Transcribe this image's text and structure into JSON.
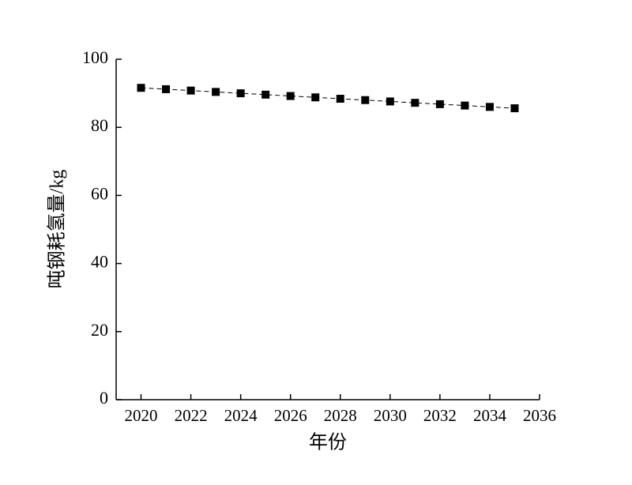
{
  "chart_data": {
    "type": "line",
    "x_label": "年份",
    "y_label": "吨钢耗氢量/kg",
    "x": [
      2020,
      2021,
      2022,
      2023,
      2024,
      2025,
      2026,
      2027,
      2028,
      2029,
      2030,
      2031,
      2032,
      2033,
      2034,
      2035
    ],
    "series": [
      {
        "color": "#000000",
        "values": [
          91.6,
          91.2,
          90.8,
          90.4,
          90.0,
          89.6,
          89.2,
          88.8,
          88.4,
          88.0,
          87.6,
          87.2,
          86.8,
          86.4,
          86.0,
          85.6
        ]
      }
    ],
    "xlim": [
      2019,
      2036
    ],
    "xticks": [
      2020,
      2022,
      2024,
      2026,
      2028,
      2030,
      2032,
      2034,
      2036
    ],
    "ylim": [
      0,
      100
    ],
    "yticks": [
      0,
      20,
      40,
      60,
      80,
      100
    ],
    "marker": "square",
    "line_style": "dashed"
  }
}
